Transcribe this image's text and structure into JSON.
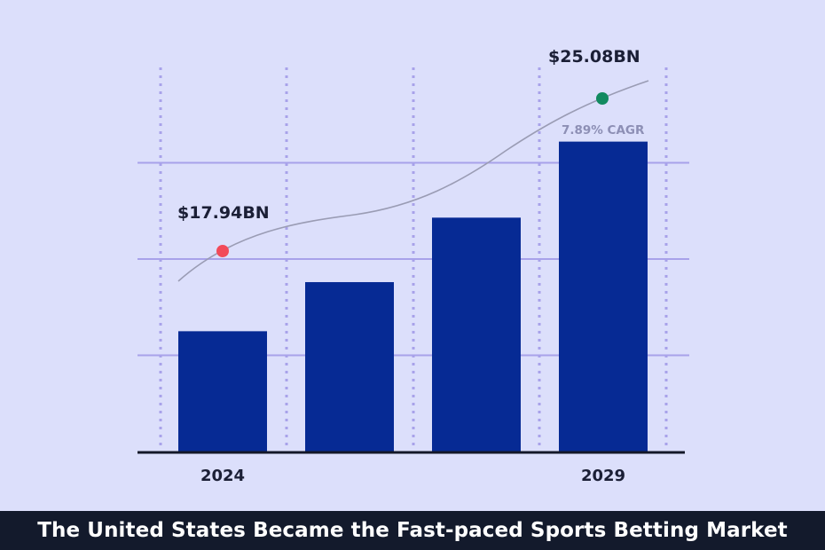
{
  "caption": "The United States Became the Fast-paced Sports Betting Market",
  "chart_data": {
    "type": "bar",
    "title": "",
    "categories": [
      "2024",
      "",
      "",
      "2029"
    ],
    "values": [
      12.5,
      17.6,
      24.3,
      32.2
    ],
    "ylim": [
      0,
      40
    ],
    "grid": {
      "horizontal": true,
      "vertical_dashed": true
    },
    "trend_line": {
      "start_label": "$17.94BN",
      "end_label": "$25.08BN",
      "growth_label": "7.89%  CAGR"
    },
    "colors": {
      "bar": "#062a94",
      "grid": "#a8a2ea",
      "trend": "#9a9cb4",
      "start_point": "#f24a5a",
      "end_point": "#128a60",
      "axis": "#141829",
      "background": "#dcdffb"
    }
  }
}
